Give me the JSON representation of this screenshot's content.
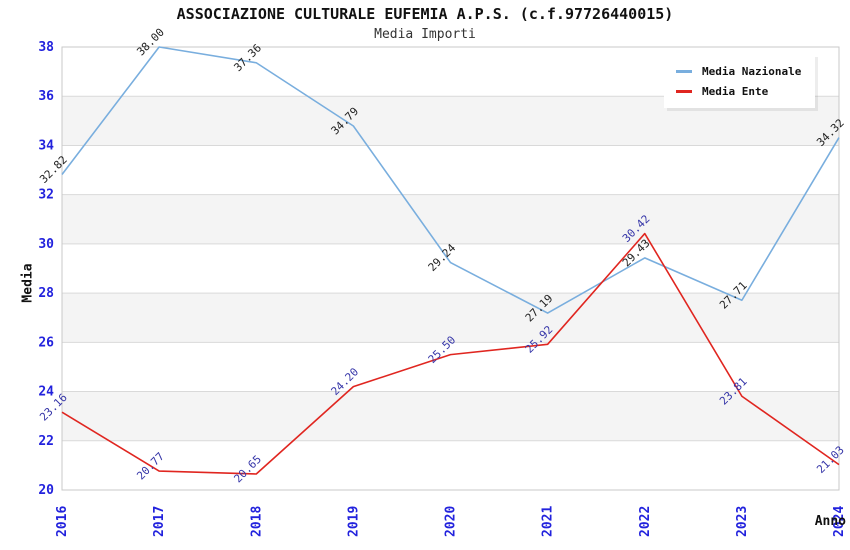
{
  "chart_data": {
    "type": "line",
    "title": "ASSOCIAZIONE CULTURALE EUFEMIA A.P.S. (c.f.97726440015)",
    "subtitle": "Media Importi",
    "xlabel": "Anno",
    "ylabel": "Media",
    "categories": [
      "2016",
      "2017",
      "2018",
      "2019",
      "2020",
      "2021",
      "2022",
      "2023",
      "2024"
    ],
    "series": [
      {
        "name": "Media Nazionale",
        "color": "#79aede",
        "label_color": "#222222",
        "values": [
          32.82,
          38.0,
          37.36,
          34.79,
          29.24,
          27.19,
          29.43,
          27.71,
          34.32
        ],
        "labels": [
          "32.82",
          "38.00",
          "37.36",
          "34.79",
          "29.24",
          "27.19",
          "29.43",
          "27.71",
          "34.32"
        ]
      },
      {
        "name": "Media Ente",
        "color": "#e02620",
        "label_color": "#3636a8",
        "values": [
          23.16,
          20.77,
          20.65,
          24.2,
          25.5,
          25.92,
          30.42,
          23.81,
          21.03
        ],
        "labels": [
          "23.16",
          "20.77",
          "20.65",
          "24.20",
          "25.50",
          "25.92",
          "30.42",
          "23.81",
          "21.03"
        ]
      }
    ],
    "ylim": [
      20,
      38
    ],
    "ytick_step": 2,
    "yticks": [
      "20",
      "22",
      "24",
      "26",
      "28",
      "30",
      "32",
      "34",
      "36",
      "38"
    ],
    "grid": true,
    "legend_position": "top-right",
    "colors": {
      "title": "#111111",
      "subtitle": "#333333",
      "tick_label": "#2222dd",
      "axis_title": "#111111",
      "gridline": "#d9d9d9",
      "plot_border": "#c9c9c9",
      "stripe": "#f4f4f4",
      "background": "#ffffff",
      "legend_bg": "#ffffff",
      "legend_text": "#111111"
    }
  }
}
